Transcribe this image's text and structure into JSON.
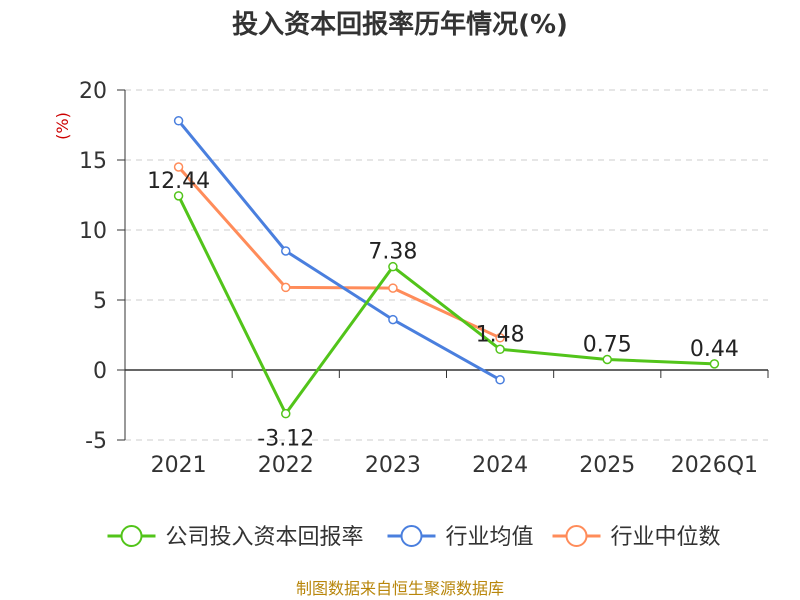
{
  "chart_data": {
    "type": "line",
    "title": "投入资本回报率历年情况(%)",
    "ylabel": "(%)",
    "categories": [
      "2021",
      "2022",
      "2023",
      "2024",
      "2025",
      "2026Q1"
    ],
    "ylim": [
      -5,
      20
    ],
    "yticks": [
      20,
      15,
      10,
      5,
      0,
      -5
    ],
    "grid": true,
    "legend_position": "bottom",
    "series": [
      {
        "name": "公司投入资本回报率",
        "color": "#52c41a",
        "values": [
          12.44,
          -3.12,
          7.38,
          1.48,
          0.75,
          0.44
        ],
        "labels": [
          "12.44",
          "-3.12",
          "7.38",
          "1.48",
          "0.75",
          "0.44"
        ]
      },
      {
        "name": "行业均值",
        "color": "#4a7fde",
        "values": [
          17.8,
          8.5,
          3.6,
          -0.7,
          null,
          null
        ]
      },
      {
        "name": "行业中位数",
        "color": "#ff8c5a",
        "values": [
          14.5,
          5.9,
          5.85,
          2.3,
          null,
          null
        ]
      }
    ],
    "source": "制图数据来自恒生聚源数据库"
  }
}
